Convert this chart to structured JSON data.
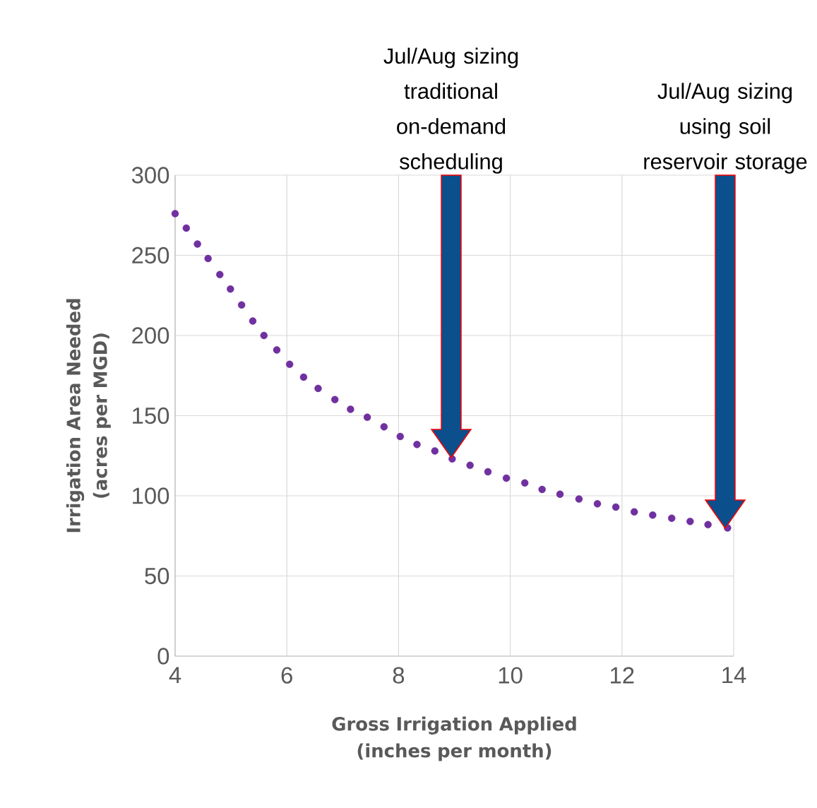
{
  "chart_data": {
    "type": "scatter",
    "xlabel": "Gross Irrigation Applied (inches per month)",
    "ylabel": "Irrigation Area Needed (acres per MGD)",
    "x": [
      4.0,
      4.2,
      4.4,
      4.59,
      4.8,
      4.99,
      5.19,
      5.39,
      5.59,
      5.82,
      6.05,
      6.3,
      6.56,
      6.86,
      7.14,
      7.44,
      7.74,
      8.03,
      8.33,
      8.65,
      8.96,
      9.28,
      9.6,
      9.93,
      10.26,
      10.57,
      10.89,
      11.23,
      11.56,
      11.89,
      12.22,
      12.55,
      12.89,
      13.22,
      13.54,
      13.89
    ],
    "values": [
      276,
      267,
      257,
      248,
      238,
      229,
      219,
      209,
      200,
      191,
      182,
      174,
      167,
      160,
      154,
      149,
      143,
      137,
      132,
      128,
      123,
      119,
      115,
      111,
      108,
      104,
      101,
      98,
      95,
      93,
      90,
      88,
      86,
      84,
      82,
      80
    ],
    "color": "#7030a0",
    "marker": "circle",
    "grid": true,
    "xlim": [
      4,
      14
    ],
    "ylim": [
      0,
      300
    ],
    "xticks": [
      4,
      6,
      8,
      10,
      12,
      14
    ],
    "yticks": [
      0,
      50,
      100,
      150,
      200,
      250,
      300
    ],
    "annotations": [
      "Jul/Aug sizing traditional on-demand scheduling",
      "Jul/Aug sizing using soil reservoir storage"
    ]
  }
}
